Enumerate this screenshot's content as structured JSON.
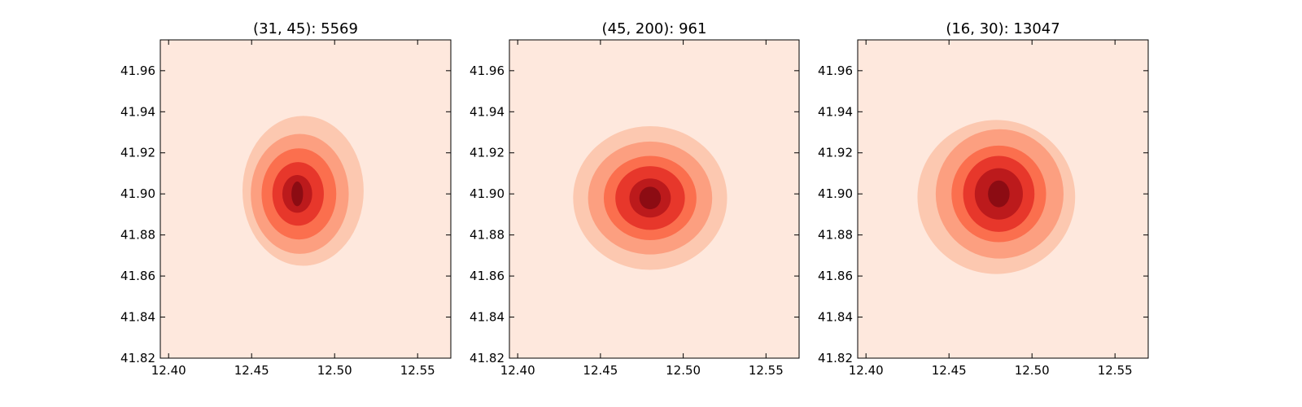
{
  "figure": {
    "background": "#ffffff",
    "colormap": [
      "#fee8dd",
      "#fcc8b0",
      "#fc9f80",
      "#fb6f4e",
      "#e7372b",
      "#bc1a1c",
      "#8c0c13"
    ]
  },
  "chart_data": [
    {
      "type": "contour",
      "title": "(31, 45): 5569",
      "xlim": [
        12.395,
        12.57
      ],
      "ylim": [
        41.82,
        41.975
      ],
      "xticks": [
        "12.40",
        "12.45",
        "12.50",
        "12.55"
      ],
      "yticks": [
        "41.82",
        "41.84",
        "41.86",
        "41.88",
        "41.90",
        "41.92",
        "41.94",
        "41.96"
      ],
      "center": [
        12.4775,
        41.9
      ],
      "levels": [
        {
          "rx": 0.0365,
          "ry": 0.0365,
          "dx": 0.0035,
          "dy": 0.0015
        },
        {
          "rx": 0.0295,
          "ry": 0.0292,
          "dx": 0.0015,
          "dy": 0.0
        },
        {
          "rx": 0.0225,
          "ry": 0.0222,
          "dx": 0.001,
          "dy": 0.0
        },
        {
          "rx": 0.0155,
          "ry": 0.0155,
          "dx": 0.0005,
          "dy": 0.0
        },
        {
          "rx": 0.009,
          "ry": 0.0092,
          "dx": 0.0,
          "dy": 0.0
        },
        {
          "rx": 0.0035,
          "ry": 0.006,
          "dx": 0.0,
          "dy": 0.0
        }
      ]
    },
    {
      "type": "contour",
      "title": "(45, 200): 961",
      "xlim": [
        12.395,
        12.57
      ],
      "ylim": [
        41.82,
        41.975
      ],
      "xticks": [
        "12.40",
        "12.45",
        "12.50",
        "12.55"
      ],
      "yticks": [
        "41.82",
        "41.84",
        "41.86",
        "41.88",
        "41.90",
        "41.92",
        "41.94",
        "41.96"
      ],
      "center": [
        12.48,
        41.898
      ],
      "levels": [
        {
          "rx": 0.0465,
          "ry": 0.035,
          "dx": 0.0,
          "dy": 0.0
        },
        {
          "rx": 0.0375,
          "ry": 0.0275,
          "dx": 0.0,
          "dy": 0.0
        },
        {
          "rx": 0.028,
          "ry": 0.0205,
          "dx": 0.0,
          "dy": 0.0
        },
        {
          "rx": 0.021,
          "ry": 0.0155,
          "dx": 0.0,
          "dy": 0.0
        },
        {
          "rx": 0.0125,
          "ry": 0.0095,
          "dx": 0.0,
          "dy": 0.0
        },
        {
          "rx": 0.0065,
          "ry": 0.0055,
          "dx": 0.0,
          "dy": 0.0
        }
      ]
    },
    {
      "type": "contour",
      "title": "(16, 30): 13047",
      "xlim": [
        12.395,
        12.57
      ],
      "ylim": [
        41.82,
        41.975
      ],
      "xticks": [
        "12.40",
        "12.45",
        "12.50",
        "12.55"
      ],
      "yticks": [
        "41.82",
        "41.84",
        "41.86",
        "41.88",
        "41.90",
        "41.92",
        "41.94",
        "41.96"
      ],
      "center": [
        12.48,
        41.9
      ],
      "levels": [
        {
          "rx": 0.0475,
          "ry": 0.0375,
          "dx": -0.0015,
          "dy": -0.0015
        },
        {
          "rx": 0.0385,
          "ry": 0.0315,
          "dx": 0.0005,
          "dy": 0.0
        },
        {
          "rx": 0.0285,
          "ry": 0.0235,
          "dx": 0.0,
          "dy": 0.0
        },
        {
          "rx": 0.0215,
          "ry": 0.0185,
          "dx": 0.0,
          "dy": 0.0
        },
        {
          "rx": 0.0145,
          "ry": 0.0125,
          "dx": 0.0,
          "dy": 0.0
        },
        {
          "rx": 0.0065,
          "ry": 0.0065,
          "dx": 0.0,
          "dy": 0.0
        }
      ]
    }
  ]
}
